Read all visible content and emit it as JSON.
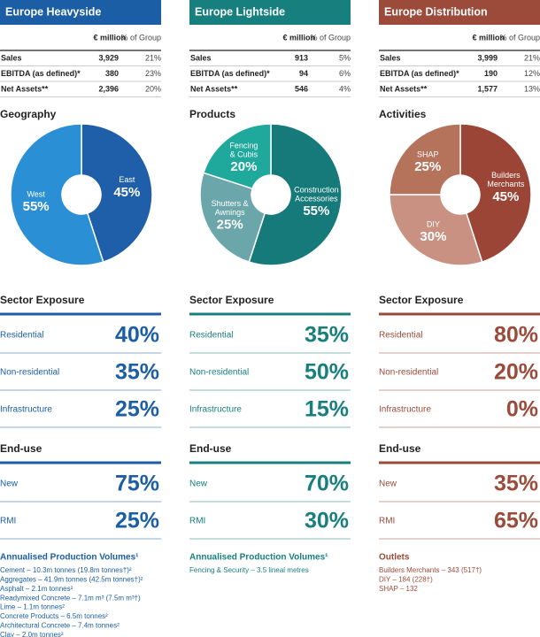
{
  "columns": [
    {
      "color": "#1b5ea6",
      "header": "Europe Heavyside",
      "table": {
        "col_headers": [
          "€ million",
          "% of Group"
        ],
        "rows": [
          [
            "Sales",
            "3,929",
            "21%"
          ],
          [
            "EBITDA (as defined)*",
            "380",
            "23%"
          ],
          [
            "Net Assets**",
            "2,396",
            "20%"
          ]
        ]
      },
      "pie": {
        "title": "Geography",
        "slices": [
          {
            "name": [
              "East"
            ],
            "value": 45,
            "value_label": "45%",
            "color": "#1f5ea8"
          },
          {
            "name": [
              "West"
            ],
            "value": 55,
            "value_label": "55%",
            "color": "#2b8fd5"
          }
        ]
      },
      "sector": {
        "title": "Sector Exposure",
        "rows": [
          [
            "Residential",
            "40%"
          ],
          [
            "Non-residential",
            "35%"
          ],
          [
            "Infrastructure",
            "25%"
          ]
        ]
      },
      "enduse": {
        "title": "End-use",
        "rows": [
          [
            "New",
            "75%"
          ],
          [
            "RMI",
            "25%"
          ]
        ]
      },
      "footer": {
        "title": "Annualised Production Volumes¹",
        "items": [
          "Cement – 10.3m tonnes (19.8m tonnes†)²",
          "Aggregates – 41.9m tonnes (42.5m tonnes†)²",
          "Asphalt – 2.1m tonnes²",
          "Readymixed Concrete – 7.1m m³ (7.5m m³†)",
          "Lime – 1.1m tonnes²",
          "Concrete Products – 6.5m tonnes²",
          "Architectural Concrete – 7.4m tonnes²",
          "Clay – 2.0m tonnes²"
        ]
      }
    },
    {
      "color": "#17807f",
      "header": "Europe Lightside",
      "table": {
        "col_headers": [
          "€ million",
          "% of Group"
        ],
        "rows": [
          [
            "Sales",
            "913",
            "5%"
          ],
          [
            "EBITDA (as defined)*",
            "94",
            "6%"
          ],
          [
            "Net Assets**",
            "546",
            "4%"
          ]
        ]
      },
      "pie": {
        "title": "Products",
        "slices": [
          {
            "name": [
              "Construction",
              "Accessories"
            ],
            "value": 55,
            "value_label": "55%",
            "color": "#16797a"
          },
          {
            "name": [
              "Shutters &",
              "Awnings"
            ],
            "value": 25,
            "value_label": "25%",
            "color": "#6aa6aa"
          },
          {
            "name": [
              "Fencing",
              "& Cubis"
            ],
            "value": 20,
            "value_label": "20%",
            "color": "#1fa99c"
          }
        ]
      },
      "sector": {
        "title": "Sector Exposure",
        "rows": [
          [
            "Residential",
            "35%"
          ],
          [
            "Non-residential",
            "50%"
          ],
          [
            "Infrastructure",
            "15%"
          ]
        ]
      },
      "enduse": {
        "title": "End-use",
        "rows": [
          [
            "New",
            "70%"
          ],
          [
            "RMI",
            "30%"
          ]
        ]
      },
      "footer": {
        "title": "Annualised Production Volumes¹",
        "items": [
          "Fencing & Security – 3.5 lineal metres"
        ]
      }
    },
    {
      "color": "#9c4a39",
      "header": "Europe Distribution",
      "table": {
        "col_headers": [
          "€ million",
          "% of Group"
        ],
        "rows": [
          [
            "Sales",
            "3,999",
            "21%"
          ],
          [
            "EBITDA (as defined)*",
            "190",
            "12%"
          ],
          [
            "Net Assets**",
            "1,577",
            "13%"
          ]
        ]
      },
      "pie": {
        "title": "Activities",
        "slices": [
          {
            "name": [
              "Builders",
              "Merchants"
            ],
            "value": 45,
            "value_label": "45%",
            "color": "#9a4535"
          },
          {
            "name": [
              "DIY"
            ],
            "value": 30,
            "value_label": "30%",
            "color": "#c99181"
          },
          {
            "name": [
              "SHAP"
            ],
            "value": 25,
            "value_label": "25%",
            "color": "#b5735c"
          }
        ]
      },
      "sector": {
        "title": "Sector Exposure",
        "rows": [
          [
            "Residential",
            "80%"
          ],
          [
            "Non-residential",
            "20%"
          ],
          [
            "Infrastructure",
            "0%"
          ]
        ]
      },
      "enduse": {
        "title": "End-use",
        "rows": [
          [
            "New",
            "35%"
          ],
          [
            "RMI",
            "65%"
          ]
        ]
      },
      "footer": {
        "title": "Outlets",
        "items": [
          "Builders Merchants – 343 (517†)",
          "DIY – 184 (228†)",
          "SHAP – 132"
        ]
      }
    }
  ]
}
